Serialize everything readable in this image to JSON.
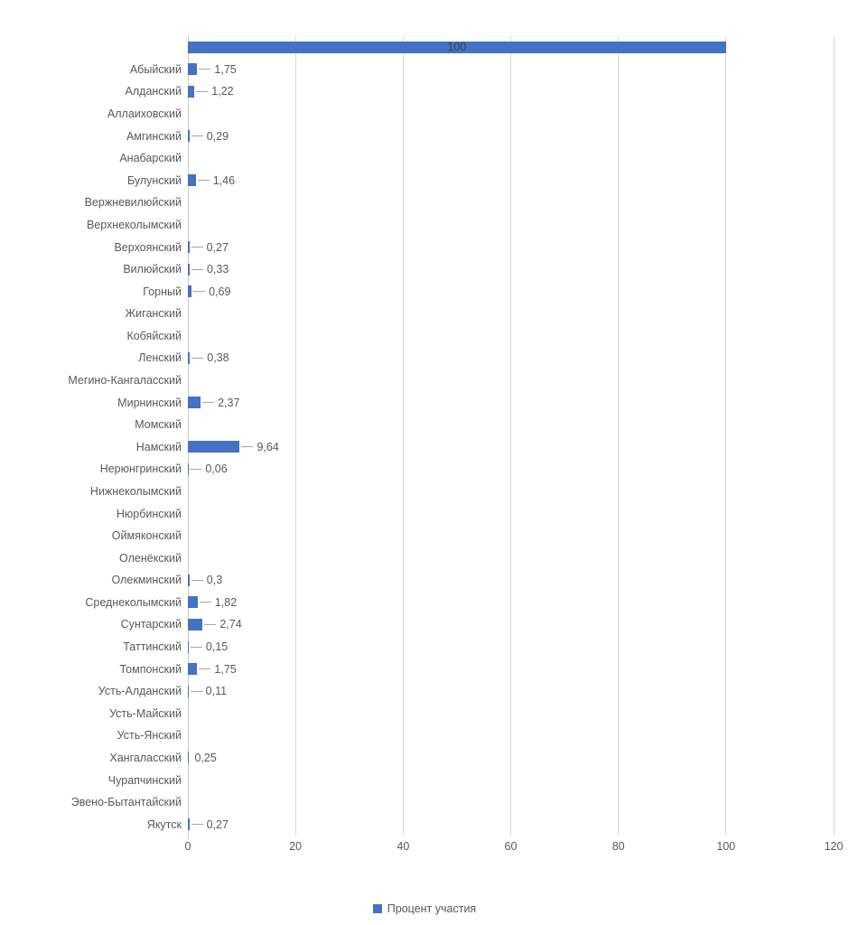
{
  "chart_data": {
    "type": "bar",
    "orientation": "horizontal",
    "title": "",
    "xlabel": "",
    "ylabel": "",
    "xlim": [
      0,
      120
    ],
    "x_ticks": [
      "0",
      "20",
      "40",
      "60",
      "80",
      "100",
      "120"
    ],
    "grid": "vertical",
    "legend_position": "bottom-center",
    "series_name": "Процент участия",
    "rows": [
      {
        "category": "",
        "value": 100,
        "display": "100",
        "label_placement": "inside"
      },
      {
        "category": "Абыйский",
        "value": 1.75,
        "display": "1,75",
        "label_placement": "leader"
      },
      {
        "category": "Алданский",
        "value": 1.22,
        "display": "1,22",
        "label_placement": "leader"
      },
      {
        "category": "Аллаиховский",
        "value": null,
        "display": "",
        "label_placement": "none"
      },
      {
        "category": "Амгинский",
        "value": 0.29,
        "display": "0,29",
        "label_placement": "leader"
      },
      {
        "category": "Анабарский",
        "value": null,
        "display": "",
        "label_placement": "none"
      },
      {
        "category": "Булунский",
        "value": 1.46,
        "display": "1,46",
        "label_placement": "leader"
      },
      {
        "category": "Вержневилюйский",
        "value": null,
        "display": "",
        "label_placement": "none"
      },
      {
        "category": "Верхнеколымский",
        "value": null,
        "display": "",
        "label_placement": "none"
      },
      {
        "category": "Верхоянский",
        "value": 0.27,
        "display": "0,27",
        "label_placement": "leader"
      },
      {
        "category": "Вилюйский",
        "value": 0.33,
        "display": "0,33",
        "label_placement": "leader"
      },
      {
        "category": "Горный",
        "value": 0.69,
        "display": "0,69",
        "label_placement": "leader"
      },
      {
        "category": "Жиганский",
        "value": null,
        "display": "",
        "label_placement": "none"
      },
      {
        "category": "Кобяйский",
        "value": null,
        "display": "",
        "label_placement": "none"
      },
      {
        "category": "Ленский",
        "value": 0.38,
        "display": "0,38",
        "label_placement": "leader"
      },
      {
        "category": "Мегино-Кангаласский",
        "value": null,
        "display": "",
        "label_placement": "none"
      },
      {
        "category": "Мирнинский",
        "value": 2.37,
        "display": "2,37",
        "label_placement": "leader"
      },
      {
        "category": "Момский",
        "value": null,
        "display": "",
        "label_placement": "none"
      },
      {
        "category": "Намский",
        "value": 9.64,
        "display": "9,64",
        "label_placement": "leader"
      },
      {
        "category": "Нерюнгринский",
        "value": 0.06,
        "display": "0,06",
        "label_placement": "leader"
      },
      {
        "category": "Нижнеколымский",
        "value": null,
        "display": "",
        "label_placement": "none"
      },
      {
        "category": "Нюрбинский",
        "value": null,
        "display": "",
        "label_placement": "none"
      },
      {
        "category": "Оймяконский",
        "value": null,
        "display": "",
        "label_placement": "none"
      },
      {
        "category": "Оленёкский",
        "value": null,
        "display": "",
        "label_placement": "none"
      },
      {
        "category": "Олекминский",
        "value": 0.3,
        "display": "0,3",
        "label_placement": "leader"
      },
      {
        "category": "Среднеколымский",
        "value": 1.82,
        "display": "1,82",
        "label_placement": "leader"
      },
      {
        "category": "Сунтарский",
        "value": 2.74,
        "display": "2,74",
        "label_placement": "leader"
      },
      {
        "category": "Таттинский",
        "value": 0.15,
        "display": "0,15",
        "label_placement": "leader"
      },
      {
        "category": "Томпонский",
        "value": 1.75,
        "display": "1,75",
        "label_placement": "leader"
      },
      {
        "category": "Усть-Алданский",
        "value": 0.11,
        "display": "0,11",
        "label_placement": "leader"
      },
      {
        "category": "Усть-Майский",
        "value": null,
        "display": "",
        "label_placement": "none"
      },
      {
        "category": "Усть-Янский",
        "value": null,
        "display": "",
        "label_placement": "none"
      },
      {
        "category": "Хангаласский",
        "value": 0.25,
        "display": "0,25",
        "label_placement": "outside"
      },
      {
        "category": "Чурапчинский",
        "value": null,
        "display": "",
        "label_placement": "none"
      },
      {
        "category": "Эвено-Бытантайский",
        "value": null,
        "display": "",
        "label_placement": "none"
      },
      {
        "category": "Якутск",
        "value": 0.27,
        "display": "0,27",
        "label_placement": "leader"
      }
    ]
  },
  "legend": {
    "label": "Процент участия"
  },
  "colors": {
    "bar": "#4472C4",
    "grid": "#D9D9D9",
    "axis_line": "#C9C9C9",
    "leader": "#A6A6A6",
    "text": "#595959",
    "inside_label": "#404040",
    "background": "#FFFFFF"
  }
}
